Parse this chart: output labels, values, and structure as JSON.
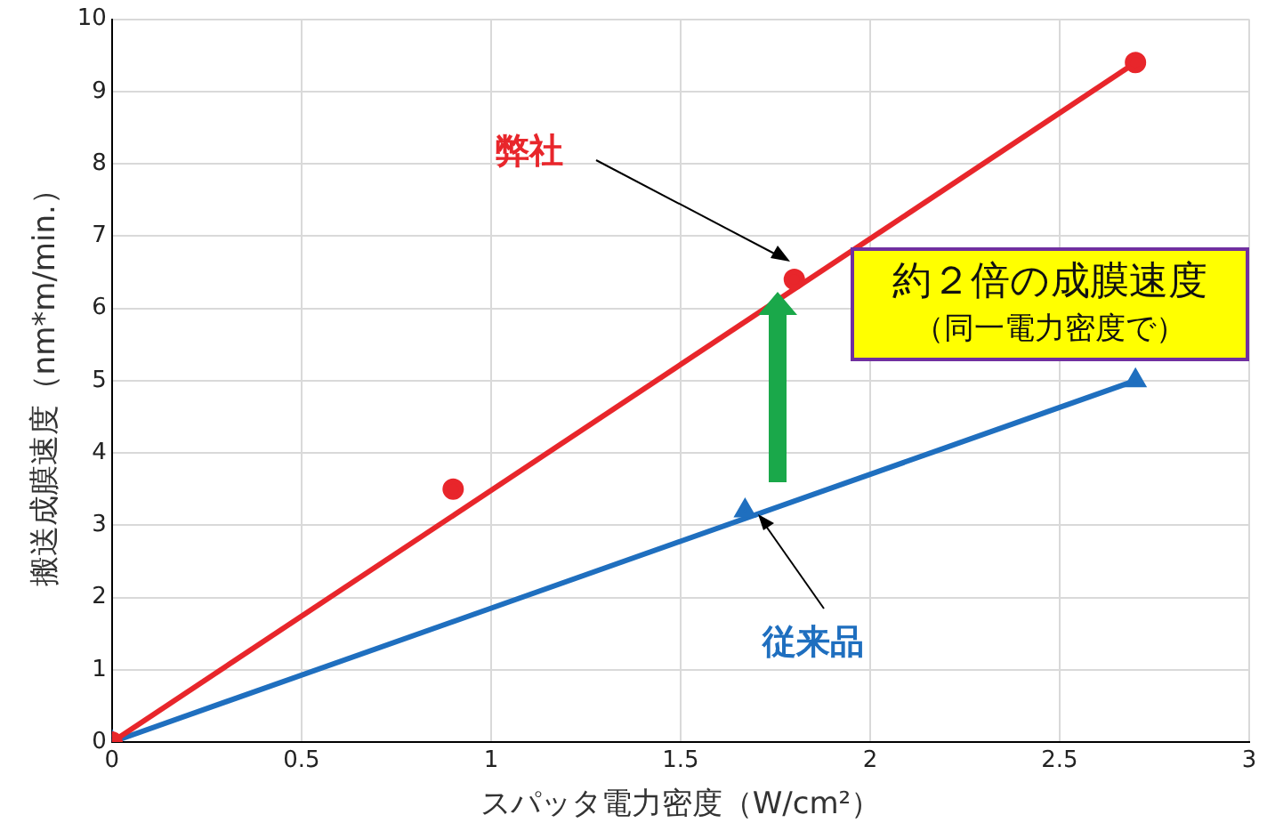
{
  "chart_data": {
    "type": "scatter",
    "xlabel": "スパッタ電力密度（W/cm²）",
    "ylabel": "搬送成膜速度（nm*m/min.）",
    "xlim": [
      0,
      3
    ],
    "xticks": [
      0,
      0.5,
      1,
      1.5,
      2,
      2.5,
      3
    ],
    "ylim": [
      0,
      10
    ],
    "yticks": [
      0,
      1,
      2,
      3,
      4,
      5,
      6,
      7,
      8,
      9,
      10
    ],
    "grid": true,
    "legend": false,
    "series": [
      {
        "type": "scatter",
        "name": "弊社",
        "color": "#e8262b",
        "marker": "circle",
        "x": [
          0,
          0.9,
          1.8,
          2.7
        ],
        "values": [
          0,
          3.5,
          6.4,
          9.4
        ]
      },
      {
        "type": "scatter",
        "name": "従来品",
        "color": "#1f6fbf",
        "marker": "triangle",
        "x": [
          0,
          1.67,
          2.7
        ],
        "values": [
          0,
          3.2,
          5.0
        ]
      },
      {
        "type": "line",
        "color": "#e8262b",
        "marker": "none",
        "x": [
          0,
          2.7
        ],
        "values": [
          0,
          9.4
        ]
      },
      {
        "type": "line",
        "color": "#1f6fbf",
        "marker": "none",
        "x": [
          0,
          2.7
        ],
        "values": [
          0,
          5.0
        ]
      }
    ],
    "annotations": [
      "約２倍の成膜速度",
      "（同一電力密度で）"
    ]
  }
}
